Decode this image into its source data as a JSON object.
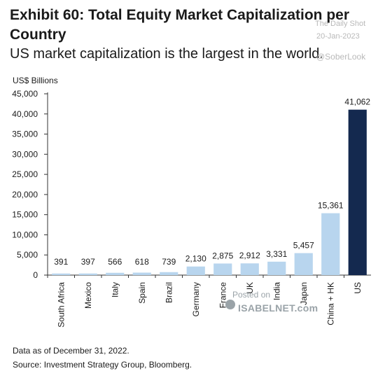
{
  "header": {
    "title": "Exhibit 60: Total Equity Market Capitalization per Country",
    "subtitle": "US market capitalization is the largest in the world."
  },
  "watermark": {
    "source": "The Daily Shot",
    "date": "20-Jan-2023",
    "handle": "@SoberLook",
    "posted_on": "Posted on",
    "site": "ISABELNET.com"
  },
  "footer": {
    "note": "Data as of December 31, 2022.",
    "source": "Source: Investment Strategy Group, Bloomberg."
  },
  "colors": {
    "bar": "#b8d5ee",
    "bar_highlight": "#14294f",
    "axis": "#333333",
    "text": "#1a1a1a"
  },
  "chart_data": {
    "type": "bar",
    "title": "Exhibit 60: Total Equity Market Capitalization per Country",
    "subtitle": "US market capitalization is the largest in the world.",
    "ylabel": "US$ Billions",
    "xlabel": "",
    "categories": [
      "South Africa",
      "Mexico",
      "Italy",
      "Spain",
      "Brazil",
      "Germany",
      "France",
      "UK",
      "India",
      "Japan",
      "China + HK",
      "US"
    ],
    "values": [
      391,
      397,
      566,
      618,
      739,
      2130,
      2875,
      2912,
      3331,
      5457,
      15361,
      41062
    ],
    "value_labels": [
      "391",
      "397",
      "566",
      "618",
      "739",
      "2,130",
      "2,875",
      "2,912",
      "3,331",
      "5,457",
      "15,361",
      "41,062"
    ],
    "highlight": "US",
    "ylim": [
      0,
      45000
    ],
    "yticks": [
      0,
      5000,
      10000,
      15000,
      20000,
      25000,
      30000,
      35000,
      40000,
      45000
    ],
    "ytick_labels": [
      "0",
      "5,000",
      "10,000",
      "15,000",
      "20,000",
      "25,000",
      "30,000",
      "35,000",
      "40,000",
      "45,000"
    ],
    "grid": false,
    "legend": "none"
  }
}
